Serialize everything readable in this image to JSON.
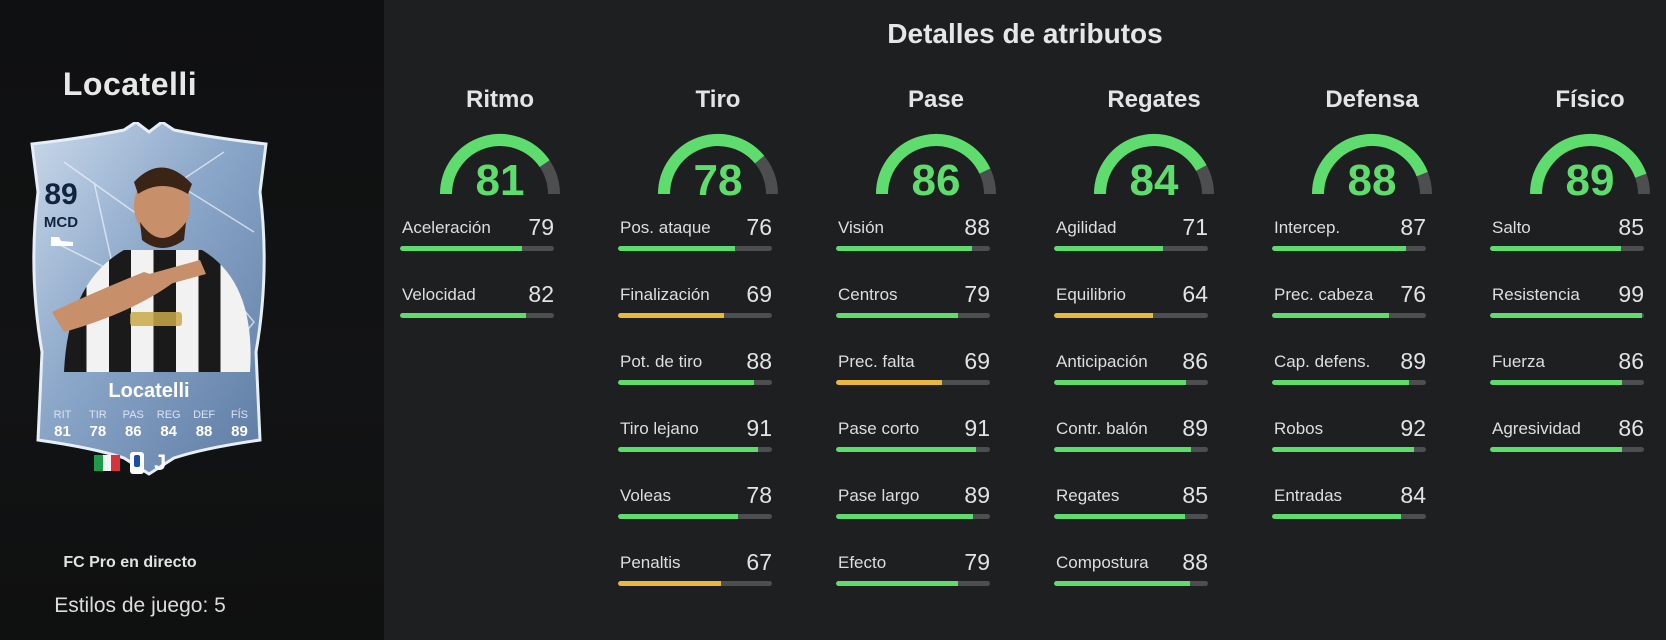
{
  "player": {
    "name": "Locatelli",
    "card": {
      "rating": "89",
      "position": "MCD",
      "name": "Locatelli",
      "stats": [
        {
          "label": "RIT",
          "value": "81"
        },
        {
          "label": "TIR",
          "value": "78"
        },
        {
          "label": "PAS",
          "value": "86"
        },
        {
          "label": "REG",
          "value": "84"
        },
        {
          "label": "DEF",
          "value": "88"
        },
        {
          "label": "FÍS",
          "value": "89"
        }
      ]
    },
    "card_type": "FC Pro en directo",
    "playstyles": "Estilos de juego: 5"
  },
  "colors": {
    "high": "#5fdc6e",
    "mid": "#e9b93e",
    "track": "#4d4e4f"
  },
  "details": {
    "title": "Detalles de atributos",
    "categories": [
      {
        "name": "Ritmo",
        "value": "81",
        "stats": [
          {
            "name": "Aceleración",
            "value": "79"
          },
          {
            "name": "Velocidad",
            "value": "82"
          }
        ]
      },
      {
        "name": "Tiro",
        "value": "78",
        "stats": [
          {
            "name": "Pos. ataque",
            "value": "76"
          },
          {
            "name": "Finalización",
            "value": "69"
          },
          {
            "name": "Pot. de tiro",
            "value": "88"
          },
          {
            "name": "Tiro lejano",
            "value": "91"
          },
          {
            "name": "Voleas",
            "value": "78"
          },
          {
            "name": "Penaltis",
            "value": "67"
          }
        ]
      },
      {
        "name": "Pase",
        "value": "86",
        "stats": [
          {
            "name": "Visión",
            "value": "88"
          },
          {
            "name": "Centros",
            "value": "79"
          },
          {
            "name": "Prec. falta",
            "value": "69"
          },
          {
            "name": "Pase corto",
            "value": "91"
          },
          {
            "name": "Pase largo",
            "value": "89"
          },
          {
            "name": "Efecto",
            "value": "79"
          }
        ]
      },
      {
        "name": "Regates",
        "value": "84",
        "stats": [
          {
            "name": "Agilidad",
            "value": "71"
          },
          {
            "name": "Equilibrio",
            "value": "64"
          },
          {
            "name": "Anticipación",
            "value": "86"
          },
          {
            "name": "Contr. balón",
            "value": "89"
          },
          {
            "name": "Regates",
            "value": "85"
          },
          {
            "name": "Compostura",
            "value": "88"
          }
        ]
      },
      {
        "name": "Defensa",
        "value": "88",
        "stats": [
          {
            "name": "Intercep.",
            "value": "87"
          },
          {
            "name": "Prec. cabeza",
            "value": "76"
          },
          {
            "name": "Cap. defens.",
            "value": "89"
          },
          {
            "name": "Robos",
            "value": "92"
          },
          {
            "name": "Entradas",
            "value": "84"
          }
        ]
      },
      {
        "name": "Físico",
        "value": "89",
        "stats": [
          {
            "name": "Salto",
            "value": "85"
          },
          {
            "name": "Resistencia",
            "value": "99"
          },
          {
            "name": "Fuerza",
            "value": "86"
          },
          {
            "name": "Agresividad",
            "value": "86"
          }
        ]
      }
    ]
  }
}
